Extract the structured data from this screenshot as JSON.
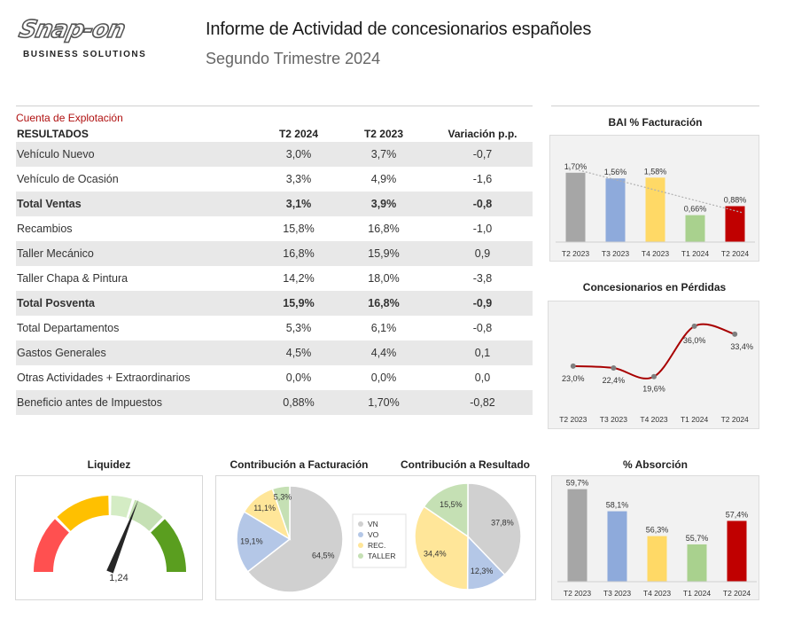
{
  "header": {
    "logo_text": "Snap-on",
    "logo_sub": "BUSINESS SOLUTIONS",
    "title": "Informe de Actividad de concesionarios españoles",
    "subtitle": "Segundo Trimestre 2024"
  },
  "table": {
    "section_label": "Cuenta de Explotación",
    "headers": [
      "RESULTADOS",
      "T2 2024",
      "T2 2023",
      "Variación p.p."
    ],
    "rows": [
      {
        "name": "Vehículo Nuevo",
        "t2_2024": "3,0%",
        "t2_2023": "3,7%",
        "var": "-0,7",
        "bold": false
      },
      {
        "name": "Vehículo de Ocasión",
        "t2_2024": "3,3%",
        "t2_2023": "4,9%",
        "var": "-1,6",
        "bold": false
      },
      {
        "name": "Total Ventas",
        "t2_2024": "3,1%",
        "t2_2023": "3,9%",
        "var": "-0,8",
        "bold": true
      },
      {
        "name": "Recambios",
        "t2_2024": "15,8%",
        "t2_2023": "16,8%",
        "var": "-1,0",
        "bold": false
      },
      {
        "name": "Taller Mecánico",
        "t2_2024": "16,8%",
        "t2_2023": "15,9%",
        "var": "0,9",
        "bold": false
      },
      {
        "name": "Taller Chapa & Pintura",
        "t2_2024": "14,2%",
        "t2_2023": "18,0%",
        "var": "-3,8",
        "bold": false
      },
      {
        "name": "Total Posventa",
        "t2_2024": "15,9%",
        "t2_2023": "16,8%",
        "var": "-0,9",
        "bold": true
      },
      {
        "name": "Total Departamentos",
        "t2_2024": "5,3%",
        "t2_2023": "6,1%",
        "var": "-0,8",
        "bold": false
      },
      {
        "name": "Gastos Generales",
        "t2_2024": "4,5%",
        "t2_2023": "4,4%",
        "var": "0,1",
        "bold": false
      },
      {
        "name": "Otras Actividades + Extraordinarios",
        "t2_2024": "0,0%",
        "t2_2023": "0,0%",
        "var": "0,0",
        "bold": false
      },
      {
        "name": "Beneficio antes de Impuestos",
        "t2_2024": "0,88%",
        "t2_2023": "1,70%",
        "var": "-0,82",
        "bold": false
      }
    ]
  },
  "chart_data": [
    {
      "id": "bai",
      "type": "bar",
      "title": "BAI % Facturación",
      "categories": [
        "T2 2023",
        "T3 2023",
        "T4 2023",
        "T1 2024",
        "T2 2024"
      ],
      "values": [
        1.7,
        1.56,
        1.58,
        0.66,
        0.88
      ],
      "labels": [
        "1,70%",
        "1,56%",
        "1,58%",
        "0,66%",
        "0,88%"
      ],
      "colors": [
        "#a6a6a6",
        "#8eaadb",
        "#ffd966",
        "#a9d18e",
        "#c00000"
      ],
      "trendline": true,
      "ylim": [
        0,
        2
      ]
    },
    {
      "id": "perdidas",
      "type": "line",
      "title": "Concesionarios en Pérdidas",
      "categories": [
        "T2 2023",
        "T3 2023",
        "T4 2023",
        "T1 2024",
        "T2 2024"
      ],
      "values": [
        23.0,
        22.4,
        19.6,
        36.0,
        33.4
      ],
      "labels": [
        "23,0%",
        "22,4%",
        "19,6%",
        "36,0%",
        "33,4%"
      ],
      "line_color": "#a80000",
      "ylim": [
        10,
        40
      ]
    },
    {
      "id": "liquidez",
      "type": "gauge",
      "title": "Liquidez",
      "value": 1.24,
      "value_label": "1,24",
      "range": [
        0,
        2
      ],
      "segments": [
        {
          "to": 0.5,
          "color": "#ff5050"
        },
        {
          "to": 1.0,
          "color": "#ffc000"
        },
        {
          "to": 1.2,
          "color": "#d4ecc4"
        },
        {
          "to": 1.5,
          "color": "#c5e0b4"
        },
        {
          "to": 2.0,
          "color": "#5a9e1f"
        }
      ]
    },
    {
      "id": "facturacion",
      "type": "pie",
      "title": "Contribución a Facturación",
      "labels": [
        "VN",
        "VO",
        "REC.",
        "TALLER"
      ],
      "values": [
        64.5,
        19.1,
        11.1,
        5.3
      ],
      "value_labels": [
        "64,5%",
        "19,1%",
        "11,1%",
        "5,3%"
      ],
      "colors": [
        "#d0d0d0",
        "#b4c7e7",
        "#ffe699",
        "#c5e0b4"
      ]
    },
    {
      "id": "resultado",
      "type": "pie",
      "title": "Contribución a Resultado",
      "labels": [
        "VN",
        "VO",
        "REC.",
        "TALLER"
      ],
      "values": [
        37.8,
        12.3,
        34.4,
        15.5
      ],
      "value_labels": [
        "37,8%",
        "12,3%",
        "34,4%",
        "15,5%"
      ],
      "colors": [
        "#d0d0d0",
        "#b4c7e7",
        "#ffe699",
        "#c5e0b4"
      ]
    },
    {
      "id": "absorcion",
      "type": "bar",
      "title": "% Absorción",
      "categories": [
        "T2 2023",
        "T3 2023",
        "T4 2023",
        "T1 2024",
        "T2 2024"
      ],
      "values": [
        59.7,
        58.1,
        56.3,
        55.7,
        57.4
      ],
      "labels": [
        "59,7%",
        "58,1%",
        "56,3%",
        "55,7%",
        "57,4%"
      ],
      "colors": [
        "#a6a6a6",
        "#8eaadb",
        "#ffd966",
        "#a9d18e",
        "#c00000"
      ],
      "ylim": [
        53,
        60
      ]
    }
  ],
  "legend": {
    "items": [
      {
        "label": "VN",
        "color": "#d0d0d0"
      },
      {
        "label": "VO",
        "color": "#b4c7e7"
      },
      {
        "label": "REC.",
        "color": "#ffe699"
      },
      {
        "label": "TALLER",
        "color": "#c5e0b4"
      }
    ]
  }
}
